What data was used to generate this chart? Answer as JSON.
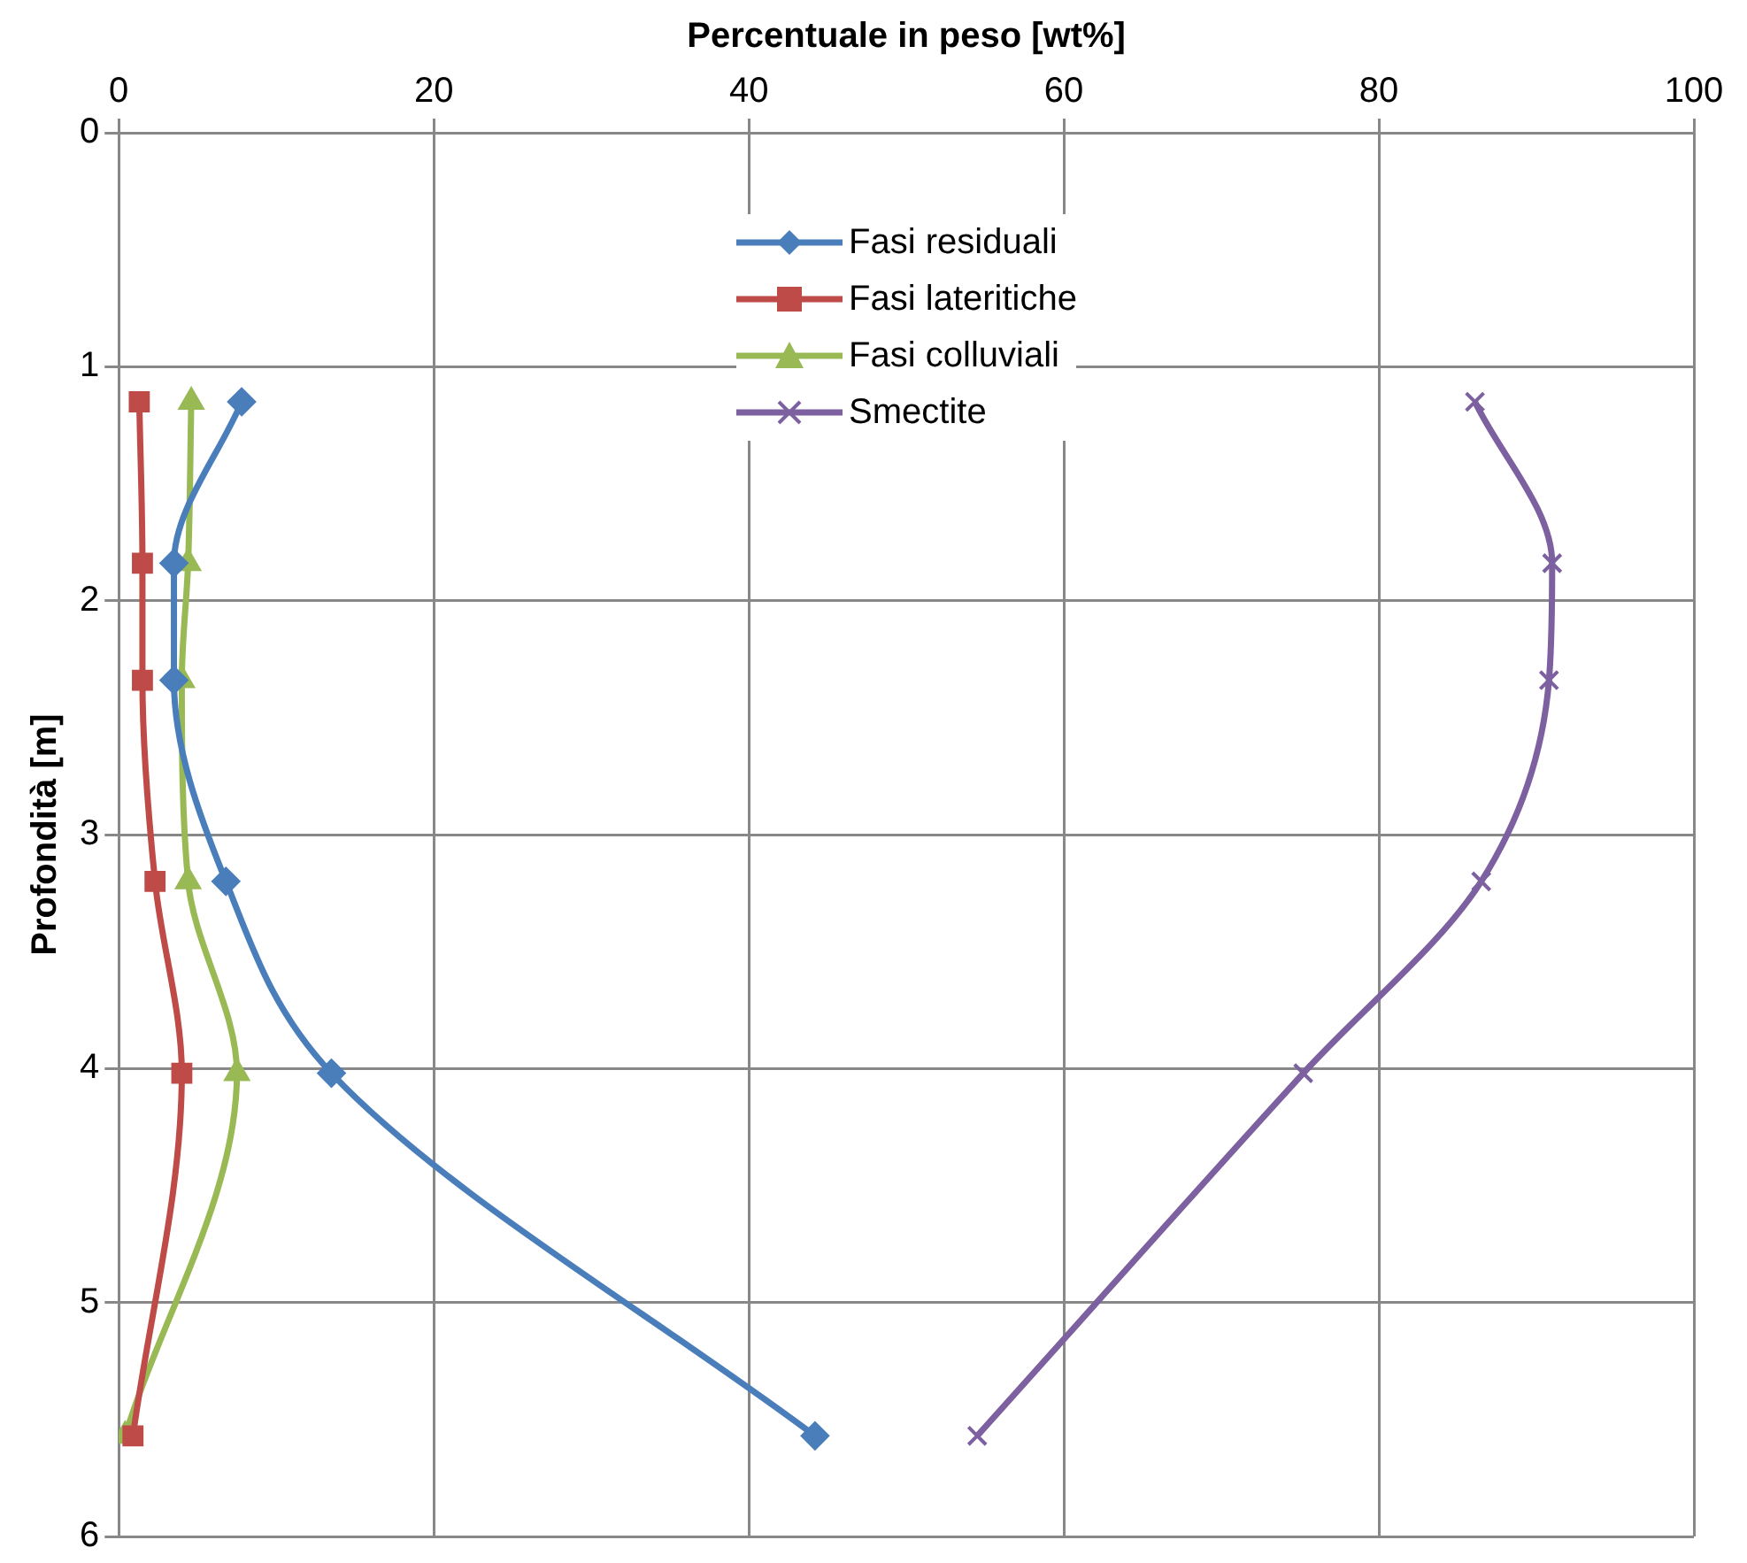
{
  "chart_data": {
    "type": "line",
    "xlabel": "Percentuale in peso [wt%]",
    "ylabel": "Profondità [m]",
    "xlim": [
      0,
      100
    ],
    "xticks": [
      0,
      20,
      40,
      60,
      80,
      100
    ],
    "ylim": [
      6,
      0
    ],
    "yticks": [
      0,
      1,
      2,
      3,
      4,
      5,
      6
    ],
    "grid": true,
    "legend": "top",
    "line_style": "solid",
    "series": [
      {
        "name": "Fasi residuali",
        "color": "#4a7ebb",
        "marker": "diamond",
        "x": [
          7.8,
          3.5,
          3.5,
          6.8,
          13.5,
          44.2
        ],
        "values": [
          1.15,
          1.84,
          2.34,
          3.2,
          4.02,
          5.57
        ]
      },
      {
        "name": "Fasi lateritiche",
        "color": "#be4b48",
        "marker": "square",
        "x": [
          1.3,
          1.5,
          1.5,
          2.3,
          4.0,
          0.9
        ],
        "values": [
          1.15,
          1.84,
          2.34,
          3.2,
          4.02,
          5.57
        ]
      },
      {
        "name": "Fasi colluviali",
        "color": "#98b954",
        "marker": "triangle",
        "x": [
          4.6,
          4.4,
          4.0,
          4.4,
          7.5,
          0.4
        ],
        "values": [
          1.15,
          1.84,
          2.34,
          3.2,
          4.02,
          5.57
        ]
      },
      {
        "name": "Smectite",
        "color": "#7d60a0",
        "marker": "cross",
        "x": [
          86.1,
          91.0,
          90.8,
          86.5,
          75.2,
          54.5
        ],
        "values": [
          1.15,
          1.84,
          2.34,
          3.2,
          4.02,
          5.57
        ]
      }
    ]
  }
}
